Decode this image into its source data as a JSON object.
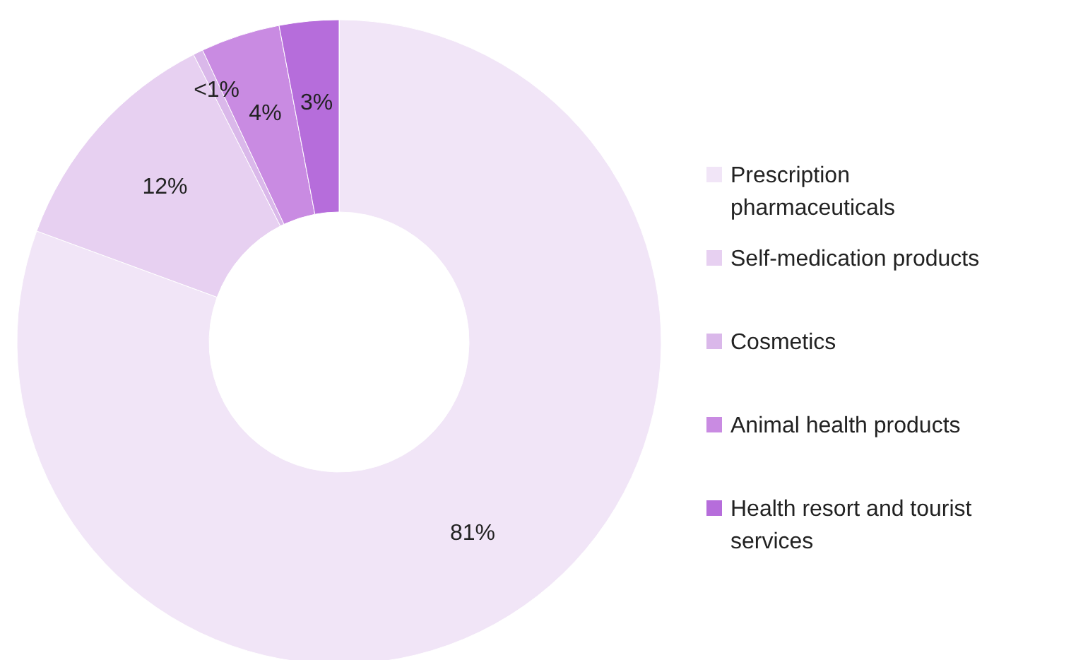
{
  "chart_data": {
    "type": "donut",
    "categories": [
      "Prescription pharmaceuticals",
      "Self-medication products",
      "Cosmetics",
      "Animal health products",
      "Health resort and tourist services"
    ],
    "values": [
      81,
      12,
      0.5,
      4,
      3
    ],
    "value_labels": [
      "81%",
      "12%",
      "<1%",
      "4%",
      "3%"
    ],
    "colors": [
      "#f1e5f7",
      "#e7d0f1",
      "#dab8ea",
      "#c98be2",
      "#b66ddb"
    ],
    "legend": "right"
  }
}
